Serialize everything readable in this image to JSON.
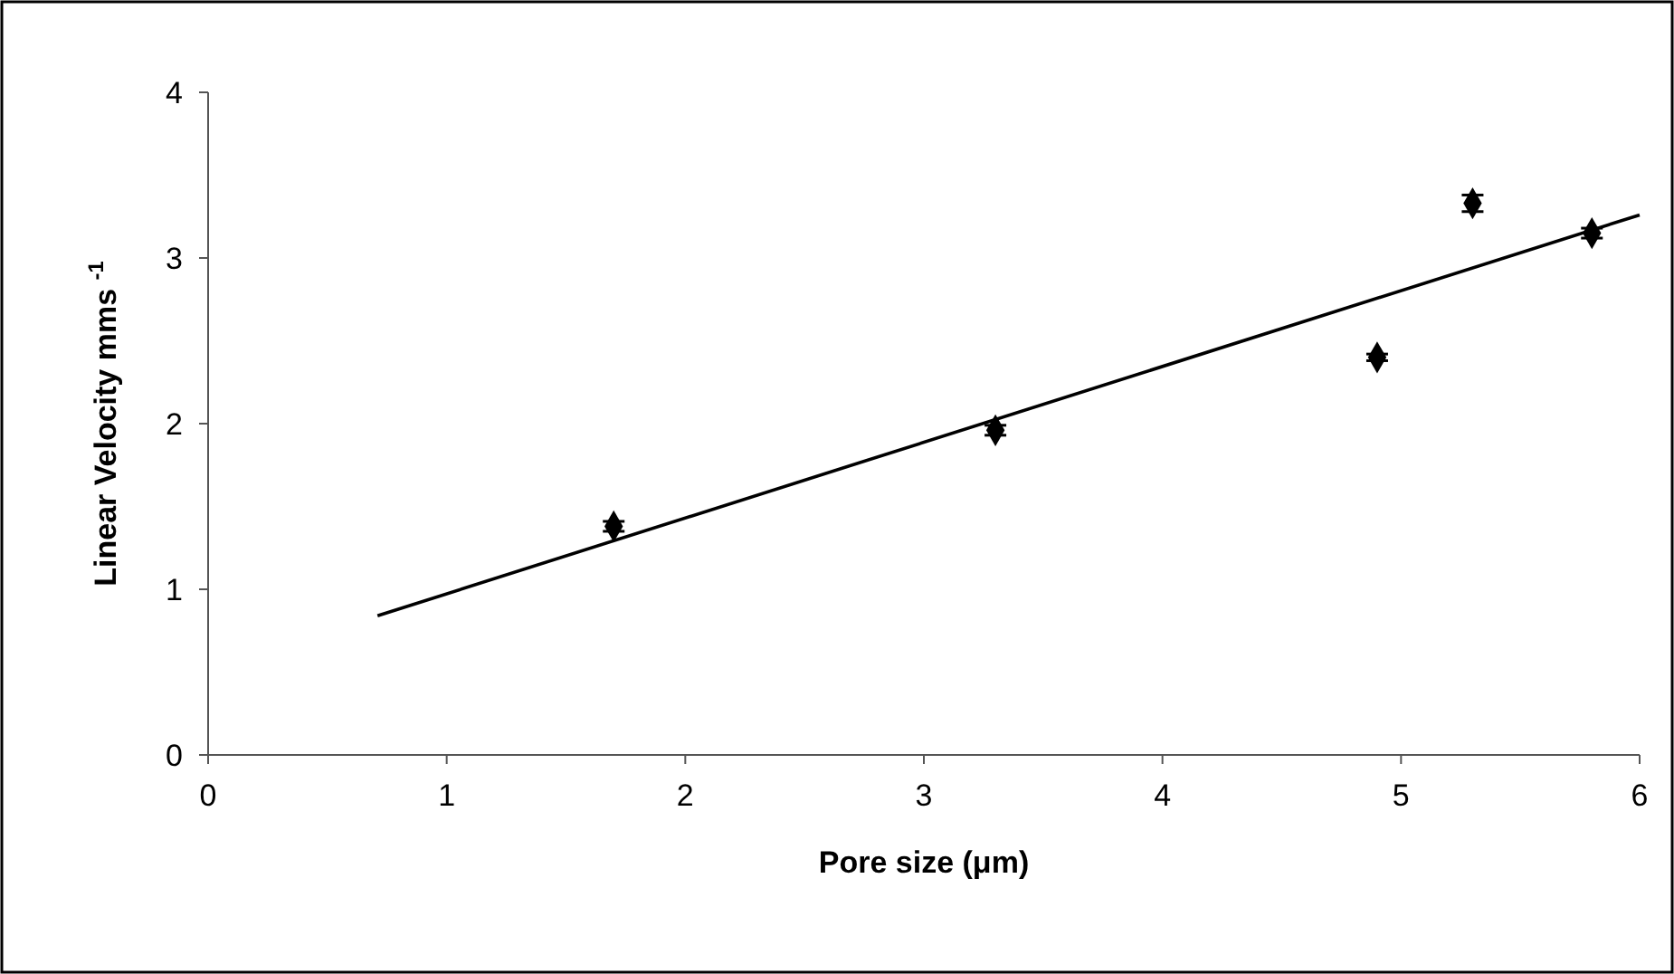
{
  "chart_data": {
    "type": "scatter",
    "xlabel": "Pore size (μm)",
    "ylabel": "Linear Velocity mms $^{-1}$",
    "xlim": [
      0,
      6
    ],
    "xticks": [
      0,
      1,
      2,
      3,
      4,
      5,
      6
    ],
    "ylim": [
      0,
      4
    ],
    "yticks": [
      0,
      1,
      2,
      3,
      4
    ],
    "grid": false,
    "marker": "diamond",
    "series": [
      {
        "color": "#000000",
        "x": [
          1.7,
          3.3,
          4.9,
          5.3,
          5.8
        ],
        "values": [
          1.38,
          1.96,
          2.4,
          3.33,
          3.15
        ],
        "errors": [
          0.03,
          0.03,
          0.02,
          0.05,
          0.03
        ]
      },
      {
        "type": "line",
        "color": "#000000",
        "x": [
          0.71,
          6
        ],
        "values": [
          0.84,
          3.26
        ],
        "line_style": "solid",
        "marker": "none"
      }
    ]
  }
}
